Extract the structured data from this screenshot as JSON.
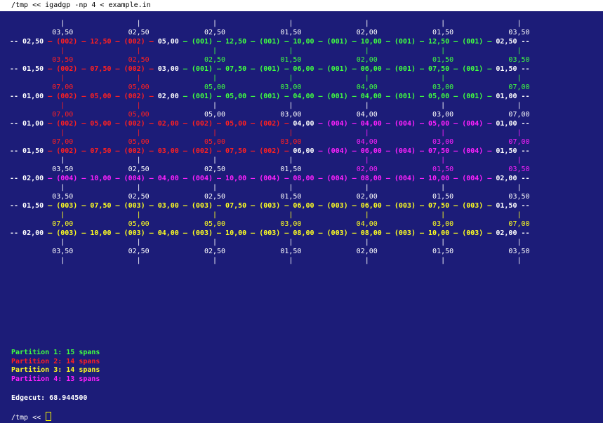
{
  "window": {
    "title": "/tmp << igadgp -np 4 < example.in",
    "background": "#1c1c78"
  },
  "colors": {
    "white": "#ffffff",
    "green": "#40ff40",
    "red": "#ff2020",
    "yellow": "#ffff20",
    "magenta": "#ff20ff"
  },
  "grid_lines": [
    {
      "type": "label",
      "y": 0,
      "segments": [
        {
          "t": "            |                 |                 |                 |                 |                 |                 |",
          "c": "white"
        }
      ]
    },
    {
      "type": "label",
      "y": 1,
      "segments": [
        {
          "t": "          03,50             02,50             02,50             01,50             02,00             01,50             03,50",
          "c": "white"
        }
      ]
    },
    {
      "type": "node",
      "y": 2,
      "segments": [
        {
          "t": "-- 02,50 ",
          "c": "white"
        },
        {
          "t": "— (002) — 12,50 — (002) —",
          "c": "red"
        },
        {
          "t": " 05,00 ",
          "c": "white"
        },
        {
          "t": "— (001) — 12,50 — (001) — 10,00 — (001) — 10,00 — (001) — 12,50 — (001) —",
          "c": "green"
        },
        {
          "t": " 02,50 --",
          "c": "white"
        }
      ]
    },
    {
      "type": "label",
      "y": 3,
      "segments": [
        {
          "t": "            |                 |",
          "c": "red"
        },
        {
          "t": "                 |                 |                 |                 |                 |",
          "c": "green"
        }
      ]
    },
    {
      "type": "label",
      "y": 4,
      "segments": [
        {
          "t": "          03,50             02,50",
          "c": "red"
        },
        {
          "t": "             02,50             01,50             02,00             01,50             03,50",
          "c": "green"
        }
      ]
    },
    {
      "type": "node",
      "y": 5,
      "segments": [
        {
          "t": "-- 01,50 ",
          "c": "white"
        },
        {
          "t": "— (002) — 07,50 — (002) —",
          "c": "red"
        },
        {
          "t": " 03,00 ",
          "c": "white"
        },
        {
          "t": "— (001) — 07,50 — (001) — 06,00 — (001) — 06,00 — (001) — 07,50 — (001) —",
          "c": "green"
        },
        {
          "t": " 01,50 --",
          "c": "white"
        }
      ]
    },
    {
      "type": "label",
      "y": 6,
      "segments": [
        {
          "t": "            |                 |",
          "c": "red"
        },
        {
          "t": "                 |                 |                 |                 |                 |",
          "c": "green"
        }
      ]
    },
    {
      "type": "label",
      "y": 7,
      "segments": [
        {
          "t": "          07,00             05,00",
          "c": "red"
        },
        {
          "t": "             05,00             03,00             04,00             03,00             07,00",
          "c": "green"
        }
      ]
    },
    {
      "type": "node",
      "y": 8,
      "segments": [
        {
          "t": "-- 01,00 ",
          "c": "white"
        },
        {
          "t": "— (002) — 05,00 — (002) —",
          "c": "red"
        },
        {
          "t": " 02,00 ",
          "c": "white"
        },
        {
          "t": "— (001) — 05,00 — (001) — 04,00 — (001) — 04,00 — (001) — 05,00 — (001) —",
          "c": "green"
        },
        {
          "t": " 01,00 --",
          "c": "white"
        }
      ]
    },
    {
      "type": "label",
      "y": 9,
      "segments": [
        {
          "t": "            |                 |",
          "c": "red"
        },
        {
          "t": "                 |                 |                 |                 |                 |",
          "c": "white"
        }
      ]
    },
    {
      "type": "label",
      "y": 10,
      "segments": [
        {
          "t": "          07,00             05,00",
          "c": "red"
        },
        {
          "t": "             05,00             03,00             04,00             03,00             07,00",
          "c": "white"
        }
      ]
    },
    {
      "type": "node",
      "y": 11,
      "segments": [
        {
          "t": "-- 01,00 ",
          "c": "white"
        },
        {
          "t": "— (002) — 05,00 — (002) — 02,00 — (002) — 05,00 — (002) —",
          "c": "red"
        },
        {
          "t": " 04,00 ",
          "c": "white"
        },
        {
          "t": "— (004) — 04,00 — (004) — 05,00 — (004) —",
          "c": "magenta"
        },
        {
          "t": " 01,00 --",
          "c": "white"
        }
      ]
    },
    {
      "type": "label",
      "y": 12,
      "segments": [
        {
          "t": "            |                 |                 |                 |",
          "c": "red"
        },
        {
          "t": "                 |                 |                 |",
          "c": "magenta"
        }
      ]
    },
    {
      "type": "label",
      "y": 13,
      "segments": [
        {
          "t": "          07,00             05,00             05,00             03,00",
          "c": "red"
        },
        {
          "t": "             04,00             03,00             07,00",
          "c": "magenta"
        }
      ]
    },
    {
      "type": "node",
      "y": 14,
      "segments": [
        {
          "t": "-- 01,50 ",
          "c": "white"
        },
        {
          "t": "— (002) — 07,50 — (002) — 03,00 — (002) — 07,50 — (002) —",
          "c": "red"
        },
        {
          "t": " 06,00 ",
          "c": "white"
        },
        {
          "t": "— (004) — 06,00 — (004) — 07,50 — (004) —",
          "c": "magenta"
        },
        {
          "t": " 01,50 --",
          "c": "white"
        }
      ]
    },
    {
      "type": "label",
      "y": 15,
      "segments": [
        {
          "t": "            |                 |                 |                 |",
          "c": "white"
        },
        {
          "t": "                 |                 |                 |",
          "c": "magenta"
        }
      ]
    },
    {
      "type": "label",
      "y": 16,
      "segments": [
        {
          "t": "          03,50             02,50             02,50             01,50",
          "c": "white"
        },
        {
          "t": "             02,00             01,50             03,50",
          "c": "magenta"
        }
      ]
    },
    {
      "type": "node",
      "y": 17,
      "segments": [
        {
          "t": "-- 02,00 ",
          "c": "white"
        },
        {
          "t": "— (004) — 10,00 — (004) — 04,00 — (004) — 10,00 — (004) — 08,00 — (004) — 08,00 — (004) — 10,00 — (004) —",
          "c": "magenta"
        },
        {
          "t": " 02,00 --",
          "c": "white"
        }
      ]
    },
    {
      "type": "label",
      "y": 18,
      "segments": [
        {
          "t": "            |                 |                 |                 |                 |                 |                 |",
          "c": "white"
        }
      ]
    },
    {
      "type": "label",
      "y": 19,
      "segments": [
        {
          "t": "          03,50             02,50             02,50             01,50             02,00             01,50             03,50",
          "c": "white"
        }
      ]
    },
    {
      "type": "node",
      "y": 20,
      "segments": [
        {
          "t": "-- 01,50 ",
          "c": "white"
        },
        {
          "t": "— (003) — 07,50 — (003) — 03,00 — (003) — 07,50 — (003) — 06,00 — (003) — 06,00 — (003) — 07,50 — (003) —",
          "c": "yellow"
        },
        {
          "t": " 01,50 --",
          "c": "white"
        }
      ]
    },
    {
      "type": "label",
      "y": 21,
      "segments": [
        {
          "t": "            |                 |                 |                 |                 |                 |                 |",
          "c": "yellow"
        }
      ]
    },
    {
      "type": "label",
      "y": 22,
      "segments": [
        {
          "t": "          07,00             05,00             05,00             03,00             04,00             03,00             07,00",
          "c": "yellow"
        }
      ]
    },
    {
      "type": "node",
      "y": 23,
      "segments": [
        {
          "t": "-- 02,00 ",
          "c": "white"
        },
        {
          "t": "— (003) — 10,00 — (003) — 04,00 — (003) — 10,00 — (003) — 08,00 — (003) — 08,00 — (003) — 10,00 — (003) —",
          "c": "yellow"
        },
        {
          "t": " 02,00 --",
          "c": "white"
        }
      ]
    },
    {
      "type": "label",
      "y": 24,
      "segments": [
        {
          "t": "            |                 |                 |                 |                 |                 |                 |",
          "c": "white"
        }
      ]
    },
    {
      "type": "label",
      "y": 25,
      "segments": [
        {
          "t": "          03,50             02,50             02,50             01,50             02,00             01,50             03,50",
          "c": "white"
        }
      ]
    },
    {
      "type": "label",
      "y": 26,
      "segments": [
        {
          "t": "            |                 |                 |                 |                 |                 |                 |",
          "c": "white"
        }
      ]
    }
  ],
  "partitions": [
    {
      "label": "Partition 1: 15 spans",
      "color": "green"
    },
    {
      "label": "Partition 2: 14 spans",
      "color": "red"
    },
    {
      "label": "Partition 3: 14 spans",
      "color": "yellow"
    },
    {
      "label": "Partition 4: 13 spans",
      "color": "magenta"
    }
  ],
  "edgecut": "Edgecut: 68.944500",
  "prompt": "/tmp << "
}
